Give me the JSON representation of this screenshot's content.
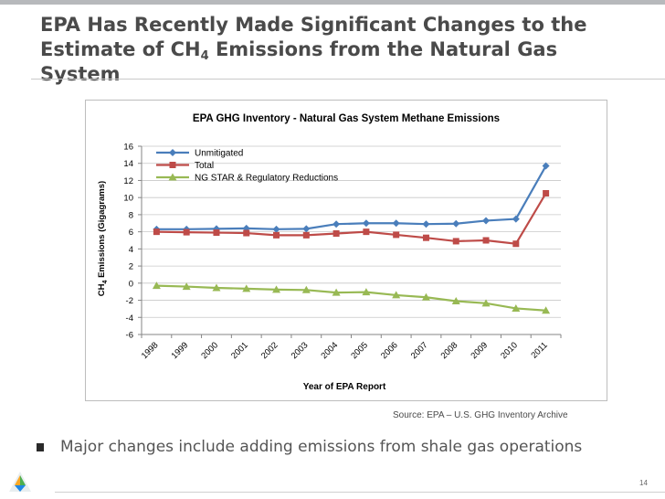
{
  "slide": {
    "title_line1": "EPA Has Recently Made Significant Changes to the",
    "title_line2_pre": "Estimate of CH",
    "title_sub": "4",
    "title_line2_post": " Emissions from the Natural Gas System",
    "source": "Source: EPA – U.S. GHG Inventory Archive",
    "bullet": "Major changes include adding emissions from shale gas operations",
    "page_number": "14"
  },
  "chart_data": {
    "type": "line",
    "title": "EPA GHG Inventory - Natural Gas System Methane Emissions",
    "xlabel": "Year of EPA Report",
    "ylabel_pre": "CH",
    "ylabel_sub": "4",
    "ylabel_post": " Emissions (Gigagrams)",
    "categories": [
      "1998",
      "1999",
      "2000",
      "2001",
      "2002",
      "2003",
      "2004",
      "2005",
      "2006",
      "2007",
      "2008",
      "2009",
      "2010",
      "2011"
    ],
    "ylim": [
      -6,
      16
    ],
    "yticks": [
      16,
      14,
      12,
      10,
      8,
      6,
      4,
      2,
      0,
      -2,
      -4,
      -6
    ],
    "grid": true,
    "legend_position": "top-left",
    "series": [
      {
        "name": "Unmitigated",
        "color": "#4a7ebb",
        "marker": "diamond",
        "values": [
          6.3,
          6.3,
          6.35,
          6.4,
          6.3,
          6.35,
          6.9,
          7.0,
          7.0,
          6.9,
          6.95,
          7.3,
          7.5,
          13.7
        ]
      },
      {
        "name": "Total",
        "color": "#be4b48",
        "marker": "square",
        "values": [
          6.0,
          5.95,
          5.9,
          5.85,
          5.6,
          5.6,
          5.8,
          6.0,
          5.65,
          5.3,
          4.9,
          5.0,
          4.6,
          10.5
        ]
      },
      {
        "name": "NG STAR & Regulatory Reductions",
        "color": "#98b954",
        "marker": "triangle",
        "values": [
          -0.3,
          -0.4,
          -0.55,
          -0.65,
          -0.75,
          -0.8,
          -1.1,
          -1.05,
          -1.4,
          -1.65,
          -2.1,
          -2.35,
          -2.95,
          -3.2
        ]
      }
    ]
  },
  "colors": {
    "title_text": "#4a4a4a",
    "grid": "#c8c8c8",
    "axis": "#868686"
  },
  "icons": {
    "logo": "company-logo-icon",
    "bullet": "square-bullet-icon"
  }
}
